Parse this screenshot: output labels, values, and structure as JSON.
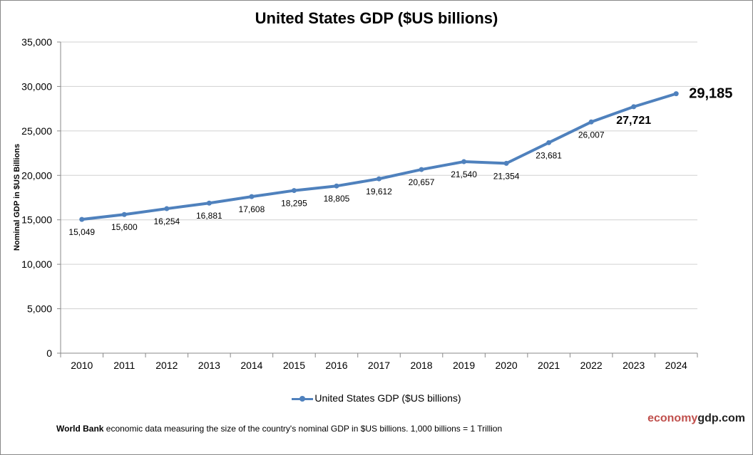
{
  "chart_data": {
    "type": "line",
    "title": "United States GDP ($US billions)",
    "xlabel": "",
    "ylabel": "Nominal GDP in $US Billions",
    "ylim": [
      0,
      35000
    ],
    "yticks": [
      0,
      5000,
      10000,
      15000,
      20000,
      25000,
      30000,
      35000
    ],
    "ytick_labels": [
      "0",
      "5,000",
      "10,000",
      "15,000",
      "20,000",
      "25,000",
      "30,000",
      "35,000"
    ],
    "grid": true,
    "legend_position": "bottom",
    "categories": [
      "2010",
      "2011",
      "2012",
      "2013",
      "2014",
      "2015",
      "2016",
      "2017",
      "2018",
      "2019",
      "2020",
      "2021",
      "2022",
      "2023",
      "2024"
    ],
    "series": [
      {
        "name": "United States GDP ($US billions)",
        "color": "#4F81BD",
        "values": [
          15049,
          15600,
          16254,
          16881,
          17608,
          18295,
          18805,
          19612,
          20657,
          21540,
          21354,
          23681,
          26007,
          27721,
          29185
        ],
        "labels": [
          "15,049",
          "15,600",
          "16,254",
          "16,881",
          "17,608",
          "18,295",
          "18,805",
          "19,612",
          "20,657",
          "21,540",
          "21,354",
          "23,681",
          "26,007",
          "27,721",
          "29,185"
        ]
      }
    ]
  },
  "footer": {
    "source_bold": "World Bank",
    "source_text": " economic data  measuring the size of the country's nominal GDP in $US billions. 1,000 billions = 1 Trillion",
    "brand_a": "economy",
    "brand_b": "gdp.com"
  }
}
